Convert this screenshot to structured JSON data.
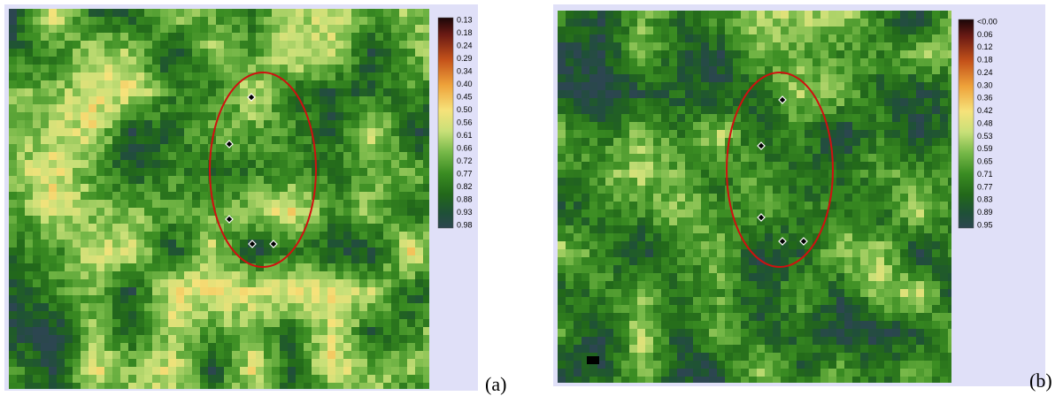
{
  "panels": [
    {
      "label": "(a)",
      "legend": [
        "0.13",
        "0.18",
        "0.24",
        "0.29",
        "0.34",
        "0.40",
        "0.45",
        "0.50",
        "0.56",
        "0.61",
        "0.66",
        "0.72",
        "0.77",
        "0.82",
        "0.88",
        "0.93",
        "0.98"
      ]
    },
    {
      "label": "(b)",
      "legend": [
        "<0.00",
        "0.06",
        "0.12",
        "0.18",
        "0.24",
        "0.30",
        "0.36",
        "0.42",
        "0.48",
        "0.53",
        "0.59",
        "0.65",
        "0.71",
        "0.77",
        "0.83",
        "0.89",
        "0.95"
      ]
    }
  ]
}
